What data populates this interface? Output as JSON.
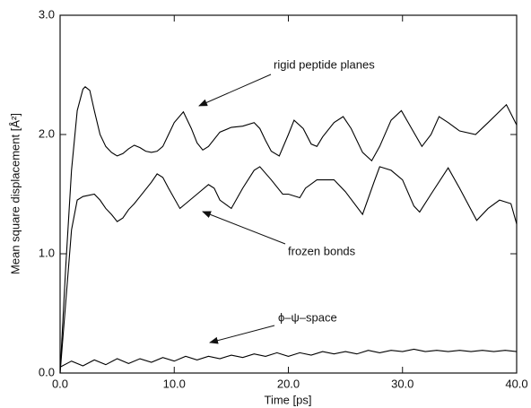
{
  "chart_data": {
    "type": "line",
    "x_label": "Time [ps]",
    "y_label": "Mean square displacement [Å²]",
    "xlim": [
      0,
      40
    ],
    "ylim": [
      0,
      3
    ],
    "xticks": [
      {
        "value": 0,
        "label": "0.0"
      },
      {
        "value": 10,
        "label": "10.0"
      },
      {
        "value": 20,
        "label": "20.0"
      },
      {
        "value": 30,
        "label": "30.0"
      },
      {
        "value": 40,
        "label": "40.0"
      }
    ],
    "yticks": [
      {
        "value": 0,
        "label": "0.0"
      },
      {
        "value": 1,
        "label": "1.0"
      },
      {
        "value": 2,
        "label": "2.0"
      },
      {
        "value": 3,
        "label": "3.0"
      }
    ],
    "series": [
      {
        "name": "rigid peptide planes",
        "color": "#000000",
        "x": [
          0,
          0.5,
          1,
          1.5,
          2,
          2.2,
          2.6,
          3,
          3.5,
          4,
          4.5,
          5,
          5.5,
          6,
          6.5,
          7,
          7.5,
          8,
          8.5,
          9,
          9.5,
          10,
          10.8,
          11.5,
          12,
          12.5,
          13,
          14,
          15,
          16,
          17,
          17.5,
          18,
          18.5,
          19.2,
          20,
          20.5,
          21.3,
          22,
          22.5,
          23,
          24,
          24.8,
          25.5,
          26.5,
          27.3,
          28,
          29,
          29.9,
          30.8,
          31.7,
          32.5,
          33.2,
          34,
          35,
          36.4,
          37.5,
          39.1,
          40
        ],
        "values": [
          0,
          0.9,
          1.7,
          2.2,
          2.38,
          2.4,
          2.37,
          2.2,
          2.0,
          1.9,
          1.85,
          1.82,
          1.84,
          1.88,
          1.91,
          1.89,
          1.86,
          1.85,
          1.86,
          1.9,
          2.0,
          2.1,
          2.19,
          2.05,
          1.93,
          1.87,
          1.9,
          2.02,
          2.06,
          2.07,
          2.1,
          2.05,
          1.95,
          1.86,
          1.82,
          2.0,
          2.12,
          2.05,
          1.92,
          1.9,
          1.98,
          2.1,
          2.15,
          2.05,
          1.85,
          1.78,
          1.9,
          2.12,
          2.2,
          2.05,
          1.9,
          2.0,
          2.15,
          2.1,
          2.03,
          2.0,
          2.1,
          2.25,
          2.08
        ]
      },
      {
        "name": "frozen bonds",
        "color": "#000000",
        "x": [
          0,
          0.5,
          1,
          1.5,
          2,
          3,
          3.5,
          4,
          4.5,
          5,
          5.5,
          6,
          6.5,
          7,
          8,
          8.5,
          9,
          9.5,
          10.5,
          11,
          12,
          13,
          13.5,
          14,
          15,
          16,
          17,
          17.5,
          18.5,
          19.5,
          20,
          21,
          21.5,
          22.5,
          24,
          25,
          26.5,
          27.5,
          28,
          29,
          30,
          31,
          31.5,
          32.5,
          34,
          35,
          36.5,
          37.5,
          38.5,
          39.5,
          40
        ],
        "values": [
          0,
          0.6,
          1.2,
          1.45,
          1.48,
          1.5,
          1.45,
          1.38,
          1.33,
          1.27,
          1.3,
          1.37,
          1.42,
          1.48,
          1.6,
          1.67,
          1.64,
          1.55,
          1.38,
          1.42,
          1.5,
          1.58,
          1.55,
          1.45,
          1.38,
          1.55,
          1.7,
          1.73,
          1.62,
          1.5,
          1.5,
          1.47,
          1.55,
          1.62,
          1.62,
          1.52,
          1.33,
          1.6,
          1.73,
          1.7,
          1.62,
          1.4,
          1.35,
          1.5,
          1.72,
          1.55,
          1.28,
          1.38,
          1.45,
          1.42,
          1.25
        ]
      },
      {
        "name": "ϕ–ψ–space",
        "color": "#000000",
        "x": [
          0,
          1,
          2,
          3,
          4,
          5,
          6,
          7,
          8,
          9,
          10,
          11,
          12,
          13,
          14,
          15,
          16,
          17,
          18,
          19,
          20,
          21,
          22,
          23,
          24,
          25,
          26,
          27,
          28,
          29,
          30,
          31,
          32,
          33,
          34,
          35,
          36,
          37,
          38,
          39,
          40
        ],
        "values": [
          0.05,
          0.1,
          0.06,
          0.11,
          0.07,
          0.12,
          0.08,
          0.12,
          0.09,
          0.13,
          0.1,
          0.14,
          0.11,
          0.14,
          0.12,
          0.15,
          0.13,
          0.16,
          0.14,
          0.17,
          0.14,
          0.17,
          0.15,
          0.18,
          0.16,
          0.18,
          0.16,
          0.19,
          0.17,
          0.19,
          0.18,
          0.2,
          0.18,
          0.19,
          0.18,
          0.19,
          0.18,
          0.19,
          0.18,
          0.19,
          0.18
        ]
      }
    ]
  }
}
